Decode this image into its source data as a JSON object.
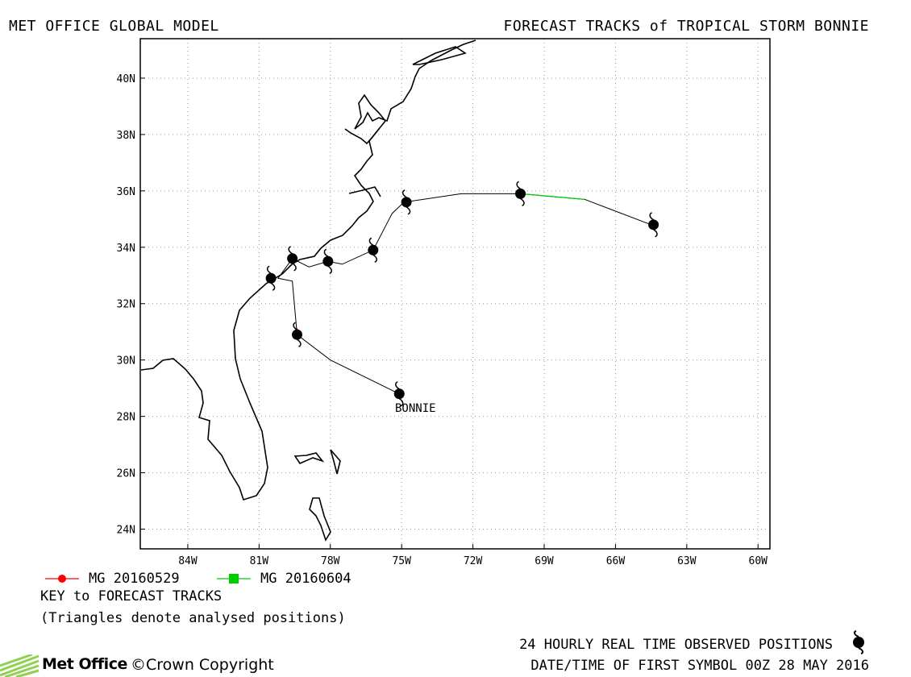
{
  "header": {
    "left_title": "MET OFFICE GLOBAL MODEL",
    "right_title": "FORECAST TRACKS of TROPICAL STORM BONNIE"
  },
  "map": {
    "lon_range": [
      -86,
      -59.5
    ],
    "lat_range": [
      23.3,
      41.4
    ],
    "lon_ticks": [
      {
        "value": -84,
        "label": "84W"
      },
      {
        "value": -81,
        "label": "81W"
      },
      {
        "value": -78,
        "label": "78W"
      },
      {
        "value": -75,
        "label": "75W"
      },
      {
        "value": -72,
        "label": "72W"
      },
      {
        "value": -69,
        "label": "69W"
      },
      {
        "value": -66,
        "label": "66W"
      },
      {
        "value": -63,
        "label": "63W"
      },
      {
        "value": -60,
        "label": "60W"
      }
    ],
    "lat_ticks": [
      {
        "value": 24,
        "label": "24N"
      },
      {
        "value": 26,
        "label": "26N"
      },
      {
        "value": 28,
        "label": "28N"
      },
      {
        "value": 30,
        "label": "30N"
      },
      {
        "value": 32,
        "label": "32N"
      },
      {
        "value": 34,
        "label": "34N"
      },
      {
        "value": 36,
        "label": "36N"
      },
      {
        "value": 38,
        "label": "38N"
      },
      {
        "value": 40,
        "label": "40N"
      }
    ],
    "gridlines": true,
    "storm_label": "BONNIE",
    "observed_track": [
      [
        -75.1,
        28.8
      ],
      [
        -78.0,
        30.0
      ],
      [
        -79.4,
        30.9
      ],
      [
        -79.6,
        32.8
      ],
      [
        -80.2,
        32.9
      ],
      [
        -79.6,
        33.6
      ],
      [
        -78.9,
        33.3
      ],
      [
        -78.1,
        33.5
      ],
      [
        -77.5,
        33.4
      ],
      [
        -76.2,
        33.9
      ],
      [
        -75.4,
        35.2
      ],
      [
        -74.9,
        35.6
      ],
      [
        -72.5,
        35.9
      ],
      [
        -70.0,
        35.9
      ],
      [
        -67.3,
        35.7
      ],
      [
        -64.5,
        34.8
      ]
    ],
    "observed_positions": [
      [
        -75.1,
        28.8
      ],
      [
        -79.4,
        30.9
      ],
      [
        -80.5,
        32.9
      ],
      [
        -79.6,
        33.6
      ],
      [
        -78.1,
        33.5
      ],
      [
        -76.2,
        33.9
      ],
      [
        -74.8,
        35.6
      ],
      [
        -70.0,
        35.9
      ],
      [
        -64.4,
        34.8
      ]
    ],
    "forecast_tracks": [
      {
        "name": "MG 20160529",
        "color": "#ff0000",
        "marker": "circle",
        "points": [
          [
            -79.4,
            31.0
          ]
        ],
        "analysed": [
          [
            -79.4,
            31.0
          ]
        ]
      },
      {
        "name": "MG 20160604",
        "color": "#00cc00",
        "marker": "square",
        "points": [
          [
            -70.0,
            35.9
          ],
          [
            -67.3,
            35.7
          ]
        ],
        "analysed": [
          [
            -70.0,
            35.9
          ]
        ]
      }
    ]
  },
  "legend": {
    "items": [
      {
        "label": "MG 20160529",
        "color": "#ff0000",
        "marker": "circle"
      },
      {
        "label": "MG 20160604",
        "color": "#00cc00",
        "marker": "square"
      }
    ],
    "key_title": "KEY to FORECAST TRACKS",
    "key_note": "(Triangles denote analysed positions)"
  },
  "footer": {
    "observed_label": "24 HOURLY REAL TIME OBSERVED POSITIONS",
    "first_symbol": "DATE/TIME OF FIRST SYMBOL 00Z 28 MAY 2016",
    "logo_text": "Met Office",
    "copyright": "©Crown Copyright",
    "icon": "hurricane-symbol-icon"
  }
}
